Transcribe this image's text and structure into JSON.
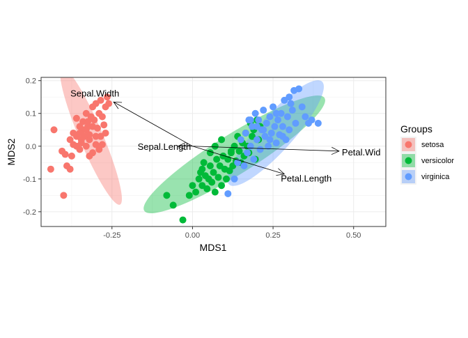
{
  "chart_data": {
    "type": "scatter",
    "xlabel": "MDS1",
    "ylabel": "MDS2",
    "xlim": [
      -0.47,
      0.6
    ],
    "ylim": [
      -0.245,
      0.21
    ],
    "x_ticks": [
      -0.25,
      0.0,
      0.25,
      0.5
    ],
    "x_tick_labels": [
      "-0.25",
      "0.00",
      "0.25",
      "0.50"
    ],
    "y_ticks": [
      -0.2,
      -0.1,
      0.0,
      0.1,
      0.2
    ],
    "y_tick_labels": [
      "-0.2",
      "-0.1",
      "0.0",
      "0.1",
      "0.2"
    ],
    "grid": true,
    "legend": {
      "title": "Groups",
      "position": "right"
    },
    "series": [
      {
        "name": "setosa",
        "color": "#F8766D",
        "ellipse": {
          "cx": -0.315,
          "cy": 0.03,
          "rx": 0.23,
          "ry": 0.036,
          "angle_deg": 67
        },
        "points": [
          [
            -0.43,
            0.05
          ],
          [
            -0.44,
            -0.07
          ],
          [
            -0.4,
            -0.15
          ],
          [
            -0.405,
            -0.015
          ],
          [
            -0.39,
            -0.06
          ],
          [
            -0.38,
            -0.07
          ],
          [
            -0.395,
            -0.025
          ],
          [
            -0.38,
            0.02
          ],
          [
            -0.37,
            0.005
          ],
          [
            -0.36,
            0.03
          ],
          [
            -0.35,
            0.06
          ],
          [
            -0.36,
            0.085
          ],
          [
            -0.35,
            -0.01
          ],
          [
            -0.345,
            0.02
          ],
          [
            -0.34,
            0.05
          ],
          [
            -0.335,
            0.03
          ],
          [
            -0.33,
            0.0
          ],
          [
            -0.33,
            0.05
          ],
          [
            -0.325,
            0.06
          ],
          [
            -0.32,
            0.02
          ],
          [
            -0.315,
            0.09
          ],
          [
            -0.31,
            0.12
          ],
          [
            -0.305,
            0.08
          ],
          [
            -0.3,
            0.03
          ],
          [
            -0.3,
            0.13
          ],
          [
            -0.295,
            0.055
          ],
          [
            -0.29,
            0.1
          ],
          [
            -0.285,
            0.14
          ],
          [
            -0.28,
            0.09
          ],
          [
            -0.275,
            0.065
          ],
          [
            -0.27,
            0.12
          ],
          [
            -0.265,
            0.15
          ],
          [
            -0.26,
            0.13
          ],
          [
            -0.27,
            0.04
          ],
          [
            -0.28,
            0.005
          ],
          [
            -0.29,
            -0.01
          ],
          [
            -0.31,
            -0.02
          ],
          [
            -0.32,
            -0.03
          ],
          [
            -0.35,
            0.04
          ],
          [
            -0.34,
            0.075
          ],
          [
            -0.33,
            0.1
          ],
          [
            -0.3,
            0.005
          ],
          [
            -0.285,
            0.03
          ],
          [
            -0.31,
            0.06
          ],
          [
            -0.32,
            0.035
          ],
          [
            -0.36,
            0.0
          ],
          [
            -0.37,
            0.04
          ],
          [
            -0.375,
            -0.03
          ],
          [
            -0.345,
            0.01
          ],
          [
            -0.325,
            0.075
          ]
        ]
      },
      {
        "name": "versicolor",
        "color": "#00BA38",
        "ellipse": {
          "cx": 0.13,
          "cy": -0.025,
          "rx": 0.33,
          "ry": 0.062,
          "angle_deg": -32
        },
        "points": [
          [
            -0.08,
            -0.15
          ],
          [
            -0.06,
            -0.18
          ],
          [
            -0.03,
            -0.225
          ],
          [
            -0.01,
            -0.15
          ],
          [
            0.0,
            -0.12
          ],
          [
            0.01,
            -0.14
          ],
          [
            0.02,
            -0.1
          ],
          [
            0.025,
            -0.08
          ],
          [
            0.03,
            -0.12
          ],
          [
            0.035,
            -0.05
          ],
          [
            0.04,
            -0.09
          ],
          [
            0.045,
            -0.13
          ],
          [
            0.05,
            -0.1
          ],
          [
            0.055,
            -0.06
          ],
          [
            0.06,
            -0.11
          ],
          [
            0.065,
            -0.08
          ],
          [
            0.07,
            -0.14
          ],
          [
            0.075,
            -0.04
          ],
          [
            0.08,
            -0.095
          ],
          [
            0.085,
            -0.06
          ],
          [
            0.09,
            -0.12
          ],
          [
            0.095,
            -0.03
          ],
          [
            0.1,
            -0.07
          ],
          [
            0.105,
            -0.1
          ],
          [
            0.11,
            -0.04
          ],
          [
            0.115,
            -0.075
          ],
          [
            0.12,
            -0.02
          ],
          [
            0.125,
            -0.06
          ],
          [
            0.13,
            0.0
          ],
          [
            0.135,
            -0.045
          ],
          [
            0.14,
            0.03
          ],
          [
            0.145,
            -0.015
          ],
          [
            0.15,
            -0.05
          ],
          [
            0.155,
            0.01
          ],
          [
            0.16,
            -0.03
          ],
          [
            0.165,
            0.04
          ],
          [
            0.17,
            0.0
          ],
          [
            0.175,
            -0.02
          ],
          [
            0.18,
            0.07
          ],
          [
            0.185,
            0.03
          ],
          [
            0.19,
            0.05
          ],
          [
            0.195,
            -0.04
          ],
          [
            0.2,
            0.08
          ],
          [
            0.205,
            0.02
          ],
          [
            0.21,
            0.06
          ],
          [
            0.07,
            0.0
          ],
          [
            0.09,
            0.02
          ],
          [
            0.055,
            -0.02
          ],
          [
            0.12,
            -0.015
          ],
          [
            0.03,
            -0.07
          ]
        ]
      },
      {
        "name": "virginica",
        "color": "#619CFF",
        "ellipse": {
          "cx": 0.258,
          "cy": 0.04,
          "rx": 0.215,
          "ry": 0.055,
          "angle_deg": -48
        },
        "points": [
          [
            0.11,
            -0.145
          ],
          [
            0.13,
            -0.1
          ],
          [
            0.14,
            -0.05
          ],
          [
            0.15,
            0.02
          ],
          [
            0.16,
            -0.06
          ],
          [
            0.165,
            0.04
          ],
          [
            0.17,
            -0.02
          ],
          [
            0.175,
            0.08
          ],
          [
            0.18,
            0.0
          ],
          [
            0.185,
            0.06
          ],
          [
            0.19,
            -0.04
          ],
          [
            0.195,
            0.1
          ],
          [
            0.2,
            0.02
          ],
          [
            0.205,
            0.08
          ],
          [
            0.21,
            -0.01
          ],
          [
            0.215,
            0.05
          ],
          [
            0.22,
            0.11
          ],
          [
            0.225,
            0.03
          ],
          [
            0.23,
            0.07
          ],
          [
            0.235,
            0.0
          ],
          [
            0.24,
            0.09
          ],
          [
            0.245,
            0.04
          ],
          [
            0.25,
            0.12
          ],
          [
            0.255,
            0.06
          ],
          [
            0.26,
            0.01
          ],
          [
            0.265,
            0.08
          ],
          [
            0.27,
            0.035
          ],
          [
            0.275,
            0.1
          ],
          [
            0.28,
            0.06
          ],
          [
            0.285,
            0.14
          ],
          [
            0.29,
            0.02
          ],
          [
            0.295,
            0.09
          ],
          [
            0.3,
            0.05
          ],
          [
            0.305,
            0.13
          ],
          [
            0.31,
            0.11
          ],
          [
            0.315,
            0.17
          ],
          [
            0.32,
            0.07
          ],
          [
            0.33,
            0.175
          ],
          [
            0.34,
            0.12
          ],
          [
            0.35,
            0.09
          ],
          [
            0.36,
            0.07
          ],
          [
            0.37,
            0.08
          ],
          [
            0.39,
            0.07
          ],
          [
            0.22,
            0.05
          ],
          [
            0.2,
            0.06
          ],
          [
            0.18,
            0.08
          ],
          [
            0.24,
            0.02
          ],
          [
            0.26,
            0.1
          ],
          [
            0.3,
            0.15
          ],
          [
            0.28,
            0.03
          ]
        ]
      }
    ],
    "arrows": [
      {
        "label": "Sepal.Width",
        "x": -0.245,
        "y": 0.135
      },
      {
        "label": "Sepal.Length",
        "x": -0.045,
        "y": 0.0
      },
      {
        "label": "Petal.Length",
        "x": 0.285,
        "y": -0.085
      },
      {
        "label": "Petal.Width",
        "x": 0.455,
        "y": -0.015
      }
    ],
    "arrow_origin": {
      "x": 0.0,
      "y": 0.0
    },
    "arrow_label_texts": [
      "Sepal.Width",
      "Sepal.Length",
      "Petal.Length",
      "Petal.Wid"
    ]
  }
}
